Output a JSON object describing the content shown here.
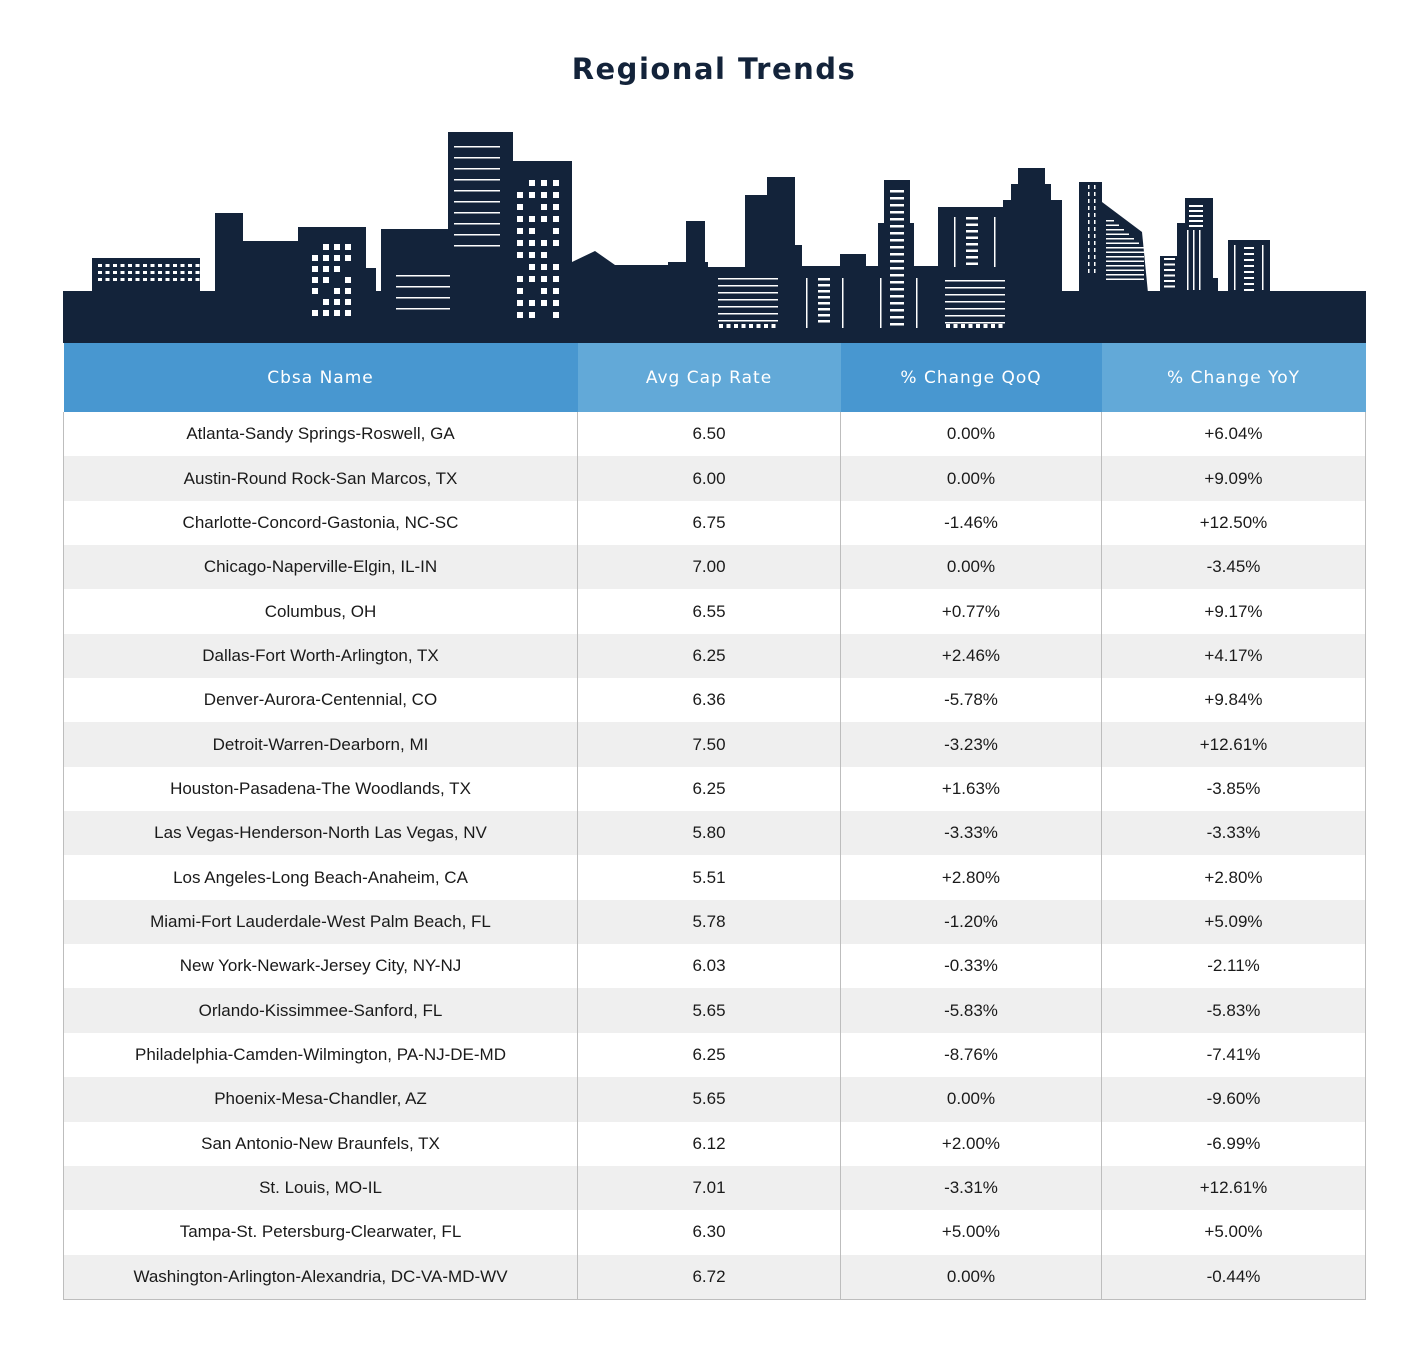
{
  "title": "Regional Trends",
  "colors": {
    "navy": "#13233a",
    "header_blue": "#4897d0",
    "header_light_blue": "#62a9d8",
    "stripe": "#efefef"
  },
  "table": {
    "headers": [
      "Cbsa Name",
      "Avg Cap Rate",
      "% Change QoQ",
      "% Change YoY"
    ],
    "rows": [
      [
        "Atlanta-Sandy Springs-Roswell, GA",
        "6.50",
        "0.00%",
        "+6.04%"
      ],
      [
        "Austin-Round Rock-San Marcos, TX",
        "6.00",
        "0.00%",
        "+9.09%"
      ],
      [
        "Charlotte-Concord-Gastonia, NC-SC",
        "6.75",
        "-1.46%",
        "+12.50%"
      ],
      [
        "Chicago-Naperville-Elgin, IL-IN",
        "7.00",
        "0.00%",
        "-3.45%"
      ],
      [
        "Columbus, OH",
        "6.55",
        "+0.77%",
        "+9.17%"
      ],
      [
        "Dallas-Fort Worth-Arlington, TX",
        "6.25",
        "+2.46%",
        "+4.17%"
      ],
      [
        "Denver-Aurora-Centennial, CO",
        "6.36",
        "-5.78%",
        "+9.84%"
      ],
      [
        "Detroit-Warren-Dearborn, MI",
        "7.50",
        "-3.23%",
        "+12.61%"
      ],
      [
        "Houston-Pasadena-The Woodlands, TX",
        "6.25",
        "+1.63%",
        "-3.85%"
      ],
      [
        "Las Vegas-Henderson-North Las Vegas, NV",
        "5.80",
        "-3.33%",
        "-3.33%"
      ],
      [
        "Los Angeles-Long Beach-Anaheim, CA",
        "5.51",
        "+2.80%",
        "+2.80%"
      ],
      [
        "Miami-Fort Lauderdale-West Palm Beach, FL",
        "5.78",
        "-1.20%",
        "+5.09%"
      ],
      [
        "New York-Newark-Jersey City, NY-NJ",
        "6.03",
        "-0.33%",
        "-2.11%"
      ],
      [
        "Orlando-Kissimmee-Sanford, FL",
        "5.65",
        "-5.83%",
        "-5.83%"
      ],
      [
        "Philadelphia-Camden-Wilmington, PA-NJ-DE-MD",
        "6.25",
        "-8.76%",
        "-7.41%"
      ],
      [
        "Phoenix-Mesa-Chandler, AZ",
        "5.65",
        "0.00%",
        "-9.60%"
      ],
      [
        "San Antonio-New Braunfels, TX",
        "6.12",
        "+2.00%",
        "-6.99%"
      ],
      [
        "St. Louis, MO-IL",
        "7.01",
        "-3.31%",
        "+12.61%"
      ],
      [
        "Tampa-St. Petersburg-Clearwater, FL",
        "6.30",
        "+5.00%",
        "+5.00%"
      ],
      [
        "Washington-Arlington-Alexandria, DC-VA-MD-WV",
        "6.72",
        "0.00%",
        "-0.44%"
      ]
    ]
  }
}
